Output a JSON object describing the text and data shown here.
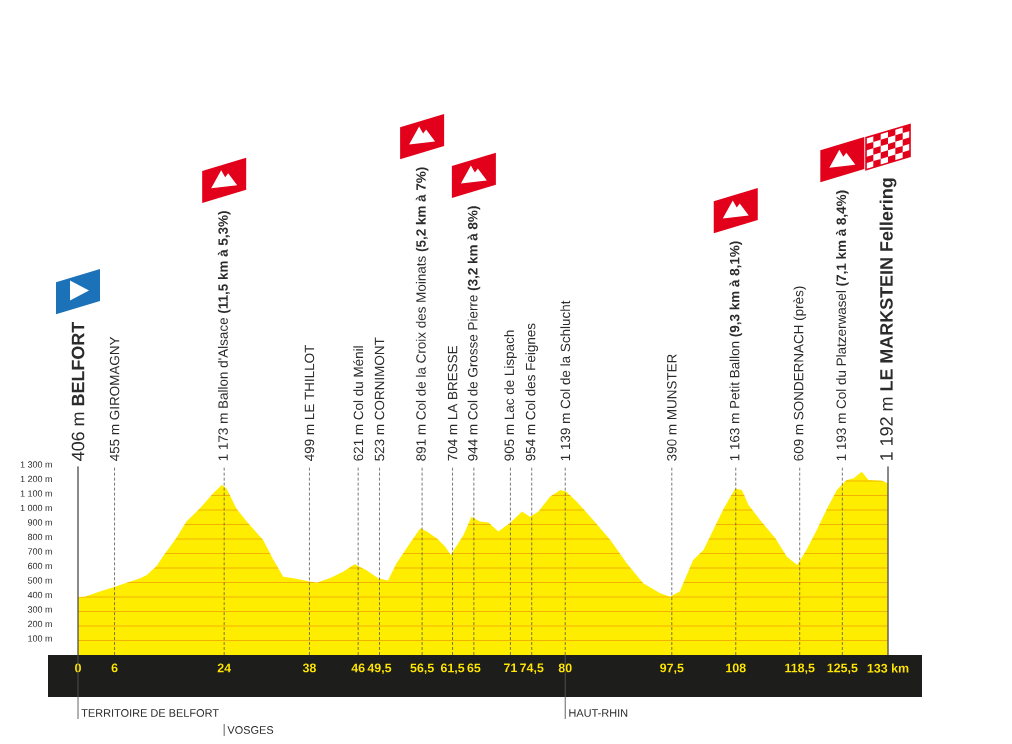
{
  "chart_data": {
    "type": "area",
    "color": "#ffed00",
    "grid": "y",
    "x": [
      0,
      1.1,
      3.6,
      5.8,
      10.2,
      11.3,
      12.9,
      14.0,
      16.2,
      17.8,
      20.0,
      22.2,
      23.6,
      24.4,
      26.0,
      27.7,
      30.4,
      32.1,
      33.7,
      35.4,
      37.6,
      39.2,
      41.4,
      43.6,
      45.4,
      47.3,
      49.3,
      50.9,
      52.3,
      54.5,
      56.2,
      57.3,
      59.1,
      60.3,
      61.2,
      63.3,
      64.6,
      66.0,
      67.4,
      69.0,
      70.9,
      72.9,
      74.2,
      75.6,
      77.5,
      79.2,
      80.2,
      81.9,
      84.6,
      87.4,
      90.1,
      92.8,
      95.6,
      97.2,
      98.8,
      101.0,
      102.7,
      104.3,
      105.9,
      107.9,
      109.0,
      110.1,
      112.0,
      114.5,
      116.4,
      118.1,
      119.6,
      121.3,
      123.0,
      124.6,
      126.2,
      127.3,
      128.7,
      129.8,
      132.0,
      133
    ],
    "values": [
      400,
      402,
      437,
      467,
      529,
      552,
      614,
      683,
      811,
      920,
      1011,
      1115,
      1172,
      1149,
      1011,
      920,
      793,
      655,
      540,
      529,
      510,
      499,
      531,
      575,
      625,
      586,
      529,
      513,
      632,
      770,
      874,
      851,
      798,
      747,
      690,
      828,
      954,
      920,
      913,
      851,
      908,
      989,
      954,
      989,
      1092,
      1138,
      1126,
      1057,
      931,
      793,
      632,
      494,
      425,
      402,
      437,
      655,
      724,
      862,
      1000,
      1149,
      1138,
      1034,
      931,
      805,
      678,
      621,
      724,
      862,
      1011,
      1138,
      1207,
      1218,
      1264,
      1207,
      1202,
      1184
    ],
    "xlim": [
      0,
      133
    ],
    "ylim": [
      0,
      1300
    ],
    "xticks": [
      0,
      6,
      24,
      38,
      46,
      {
        "value": 49.5,
        "label": "49,5"
      },
      {
        "value": 56.5,
        "label": "56,5"
      },
      {
        "value": 61.5,
        "label": "61,5"
      },
      65,
      71,
      {
        "value": 74.5,
        "label": "74,5"
      },
      80,
      {
        "value": 97.5,
        "label": "97,5"
      },
      108,
      {
        "value": 118.5,
        "label": "118,5"
      },
      {
        "value": 125.5,
        "label": "125,5"
      },
      {
        "value": 133,
        "label": "133 km"
      }
    ],
    "yticks": [
      {
        "value": 100,
        "label": "100 m"
      },
      {
        "value": 200,
        "label": "200 m"
      },
      {
        "value": 300,
        "label": "300 m"
      },
      {
        "value": 400,
        "label": "400 m"
      },
      {
        "value": 500,
        "label": "500 m"
      },
      {
        "value": 600,
        "label": "600 m"
      },
      {
        "value": 700,
        "label": "700 m"
      },
      {
        "value": 800,
        "label": "800 m"
      },
      {
        "value": 900,
        "label": "900 m"
      },
      {
        "value": 1000,
        "label": "1 000 m"
      },
      {
        "value": 1100,
        "label": "1 100 m"
      },
      {
        "value": 1200,
        "label": "1 200 m"
      },
      {
        "value": 1300,
        "label": "1 300 m"
      }
    ],
    "ref_lines": [
      {
        "axis": "x",
        "value": 0,
        "label": "406 m **BELFORT**",
        "line_style": "solid"
      },
      {
        "axis": "x",
        "value": 6,
        "label": "455 m GIROMAGNY",
        "line_style": "dashed"
      },
      {
        "axis": "x",
        "value": 24,
        "label": "1 173 m Ballon d'Alsace **(11,5 km à 5,3%)**",
        "line_style": "dashed"
      },
      {
        "axis": "x",
        "value": 38,
        "label": "499 m LE THILLOT",
        "line_style": "dashed"
      },
      {
        "axis": "x",
        "value": 46,
        "label": "621 m Col du Ménil",
        "line_style": "dashed"
      },
      {
        "axis": "x",
        "value": 49.5,
        "label": "523 m CORNIMONT",
        "line_style": "dashed"
      },
      {
        "axis": "x",
        "value": 56.5,
        "label": "891 m Col de la Croix des Moinats **(5,2 km à 7%)**",
        "line_style": "dashed"
      },
      {
        "axis": "x",
        "value": 61.5,
        "label": "704 m LA BRESSE",
        "line_style": "dashed"
      },
      {
        "axis": "x",
        "value": 65,
        "label": "944 m Col de Grosse Pierre **(3,2 km à 8%)**",
        "line_style": "dashed"
      },
      {
        "axis": "x",
        "value": 71,
        "label": "905 m Lac de Lispach",
        "line_style": "dashed"
      },
      {
        "axis": "x",
        "value": 74.5,
        "label": "954 m Col des Feignes",
        "line_style": "dashed"
      },
      {
        "axis": "x",
        "value": 80,
        "label": "1 139 m Col de la Schlucht",
        "line_style": "dashed"
      },
      {
        "axis": "x",
        "value": 97.5,
        "label": "390 m MUNSTER",
        "line_style": "dashed"
      },
      {
        "axis": "x",
        "value": 108,
        "label": "1 163 m Petit Ballon **(9,3 km à 8,1%)**",
        "line_style": "dashed"
      },
      {
        "axis": "x",
        "value": 118.5,
        "label": "609 m SONDERNACH (près)",
        "line_style": "dashed"
      },
      {
        "axis": "x",
        "value": 125.5,
        "label": "1 193 m Col du Platzerwasel **(7,1 km à 8,4%)**",
        "line_style": "dashed"
      },
      {
        "axis": "x",
        "value": 133,
        "label": "1 192 m **LE MARKSTEIN Fellering**",
        "line_style": "solid"
      },
      {
        "axis": "x",
        "value": 0,
        "label": "TERRITOIRE DE BELFORT",
        "line_style": "solid",
        "color": "#555555"
      },
      {
        "axis": "x",
        "value": 24,
        "label": "VOSGES",
        "line_style": "solid",
        "color": "#555555"
      },
      {
        "axis": "x",
        "value": 80,
        "label": "HAUT-RHIN",
        "line_style": "solid",
        "color": "#555555"
      }
    ]
  }
}
